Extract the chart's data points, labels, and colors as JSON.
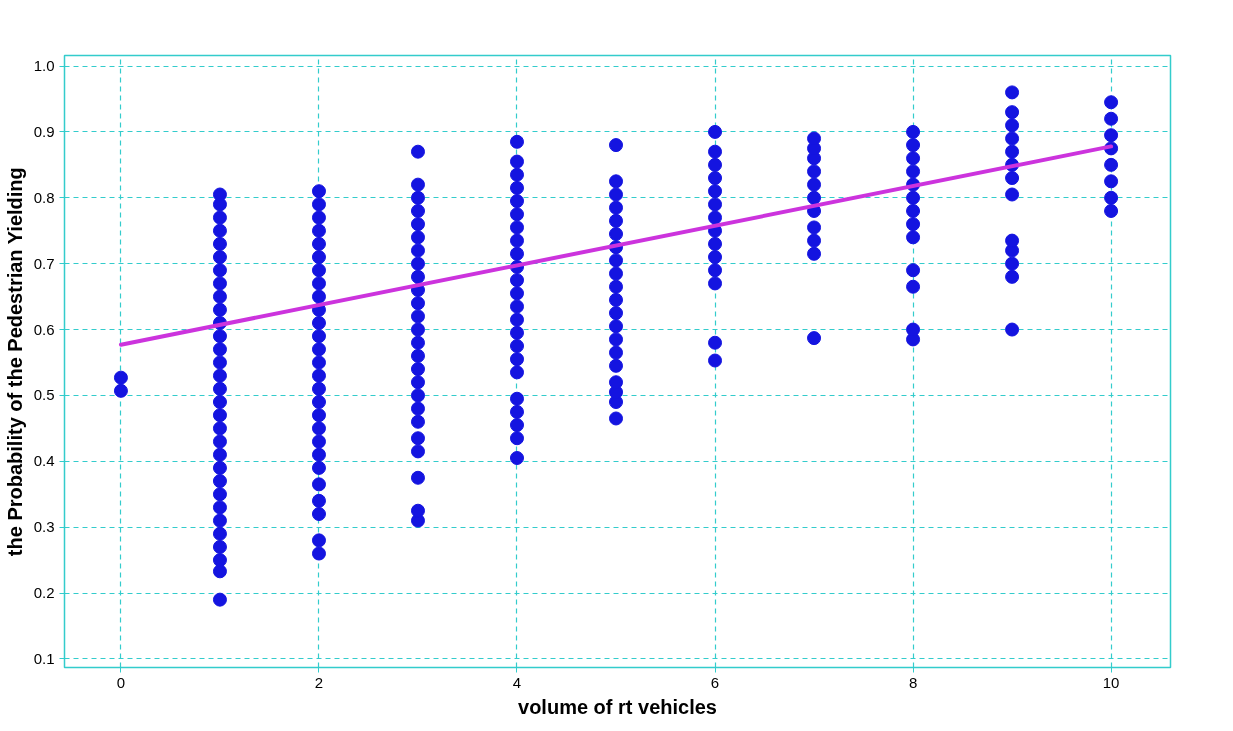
{
  "chart_data": {
    "type": "scatter",
    "xlabel": "volume of rt vehicles",
    "ylabel": "the Probability of the Pedestrian Yielding",
    "xlim": [
      -0.57,
      10.6
    ],
    "ylim": [
      0.087,
      1.016
    ],
    "xticks": [
      0,
      2,
      4,
      6,
      8,
      10
    ],
    "yticks": [
      0.1,
      0.2,
      0.3,
      0.4,
      0.5,
      0.6,
      0.7,
      0.8,
      0.9,
      {
        "value": 1,
        "label": "1.0"
      }
    ],
    "grid": true,
    "marker": "circle",
    "series": [
      {
        "color": "#1414e0",
        "x": [
          0,
          0
        ],
        "values": [
          0.527,
          0.507
        ]
      },
      {
        "color": "#1414e0",
        "x": [
          1,
          1,
          1,
          1,
          1,
          1,
          1,
          1,
          1,
          1,
          1,
          1,
          1,
          1,
          1,
          1,
          1,
          1,
          1,
          1,
          1,
          1,
          1,
          1,
          1,
          1,
          1,
          1,
          1,
          1,
          1
        ],
        "values": [
          0.19,
          0.233,
          0.25,
          0.27,
          0.29,
          0.31,
          0.33,
          0.35,
          0.37,
          0.39,
          0.41,
          0.43,
          0.45,
          0.47,
          0.49,
          0.51,
          0.53,
          0.55,
          0.57,
          0.59,
          0.61,
          0.63,
          0.65,
          0.67,
          0.69,
          0.71,
          0.73,
          0.75,
          0.77,
          0.79,
          0.805
        ]
      },
      {
        "color": "#1414e0",
        "x": [
          2,
          2,
          2,
          2,
          2,
          2,
          2,
          2,
          2,
          2,
          2,
          2,
          2,
          2,
          2,
          2,
          2,
          2,
          2,
          2,
          2,
          2,
          2,
          2,
          2,
          2,
          2
        ],
        "values": [
          0.26,
          0.28,
          0.32,
          0.34,
          0.365,
          0.39,
          0.41,
          0.43,
          0.45,
          0.47,
          0.49,
          0.51,
          0.53,
          0.55,
          0.57,
          0.59,
          0.61,
          0.63,
          0.65,
          0.67,
          0.69,
          0.71,
          0.73,
          0.75,
          0.77,
          0.79,
          0.81
        ]
      },
      {
        "color": "#1414e0",
        "x": [
          3,
          3,
          3,
          3,
          3,
          3,
          3,
          3,
          3,
          3,
          3,
          3,
          3,
          3,
          3,
          3,
          3,
          3,
          3,
          3,
          3,
          3,
          3,
          3,
          3
        ],
        "values": [
          0.31,
          0.325,
          0.375,
          0.415,
          0.435,
          0.46,
          0.48,
          0.5,
          0.52,
          0.54,
          0.56,
          0.58,
          0.6,
          0.62,
          0.64,
          0.66,
          0.68,
          0.7,
          0.72,
          0.74,
          0.76,
          0.78,
          0.8,
          0.82,
          0.87
        ]
      },
      {
        "color": "#1414e0",
        "x": [
          4,
          4,
          4,
          4,
          4,
          4,
          4,
          4,
          4,
          4,
          4,
          4,
          4,
          4,
          4,
          4,
          4,
          4,
          4,
          4,
          4,
          4,
          4
        ],
        "values": [
          0.405,
          0.435,
          0.455,
          0.475,
          0.495,
          0.535,
          0.555,
          0.575,
          0.595,
          0.615,
          0.635,
          0.655,
          0.675,
          0.695,
          0.715,
          0.735,
          0.755,
          0.775,
          0.795,
          0.815,
          0.835,
          0.855,
          0.885
        ]
      },
      {
        "color": "#1414e0",
        "x": [
          5,
          5,
          5,
          5,
          5,
          5,
          5,
          5,
          5,
          5,
          5,
          5,
          5,
          5,
          5,
          5,
          5,
          5,
          5,
          5
        ],
        "values": [
          0.465,
          0.49,
          0.505,
          0.52,
          0.545,
          0.565,
          0.585,
          0.605,
          0.625,
          0.645,
          0.665,
          0.685,
          0.705,
          0.725,
          0.745,
          0.765,
          0.785,
          0.805,
          0.825,
          0.88
        ]
      },
      {
        "color": "#1414e0",
        "x": [
          6,
          6,
          6,
          6,
          6,
          6,
          6,
          6,
          6,
          6,
          6,
          6,
          6,
          6
        ],
        "values": [
          0.553,
          0.58,
          0.67,
          0.69,
          0.71,
          0.73,
          0.75,
          0.77,
          0.79,
          0.81,
          0.83,
          0.85,
          0.87,
          0.9
        ]
      },
      {
        "color": "#1414e0",
        "x": [
          7,
          7,
          7,
          7,
          7,
          7,
          7,
          7,
          7,
          7,
          7
        ],
        "values": [
          0.587,
          0.715,
          0.735,
          0.755,
          0.78,
          0.8,
          0.82,
          0.84,
          0.86,
          0.875,
          0.89
        ]
      },
      {
        "color": "#1414e0",
        "x": [
          8,
          8,
          8,
          8,
          8,
          8,
          8,
          8,
          8,
          8,
          8,
          8,
          8
        ],
        "values": [
          0.585,
          0.6,
          0.665,
          0.69,
          0.74,
          0.76,
          0.78,
          0.8,
          0.82,
          0.84,
          0.86,
          0.88,
          0.9
        ]
      },
      {
        "color": "#1414e0",
        "x": [
          9,
          9,
          9,
          9,
          9,
          9,
          9,
          9,
          9,
          9,
          9,
          9,
          9
        ],
        "values": [
          0.6,
          0.68,
          0.7,
          0.72,
          0.735,
          0.805,
          0.83,
          0.85,
          0.87,
          0.89,
          0.91,
          0.93,
          0.96
        ]
      },
      {
        "color": "#1414e0",
        "x": [
          10,
          10,
          10,
          10,
          10,
          10,
          10,
          10
        ],
        "values": [
          0.78,
          0.8,
          0.825,
          0.85,
          0.875,
          0.895,
          0.92,
          0.945
        ]
      },
      {
        "type": "line",
        "color": "#cc33dd",
        "x": [
          0,
          10
        ],
        "values": [
          0.577,
          0.878
        ],
        "marker": "none"
      }
    ]
  }
}
